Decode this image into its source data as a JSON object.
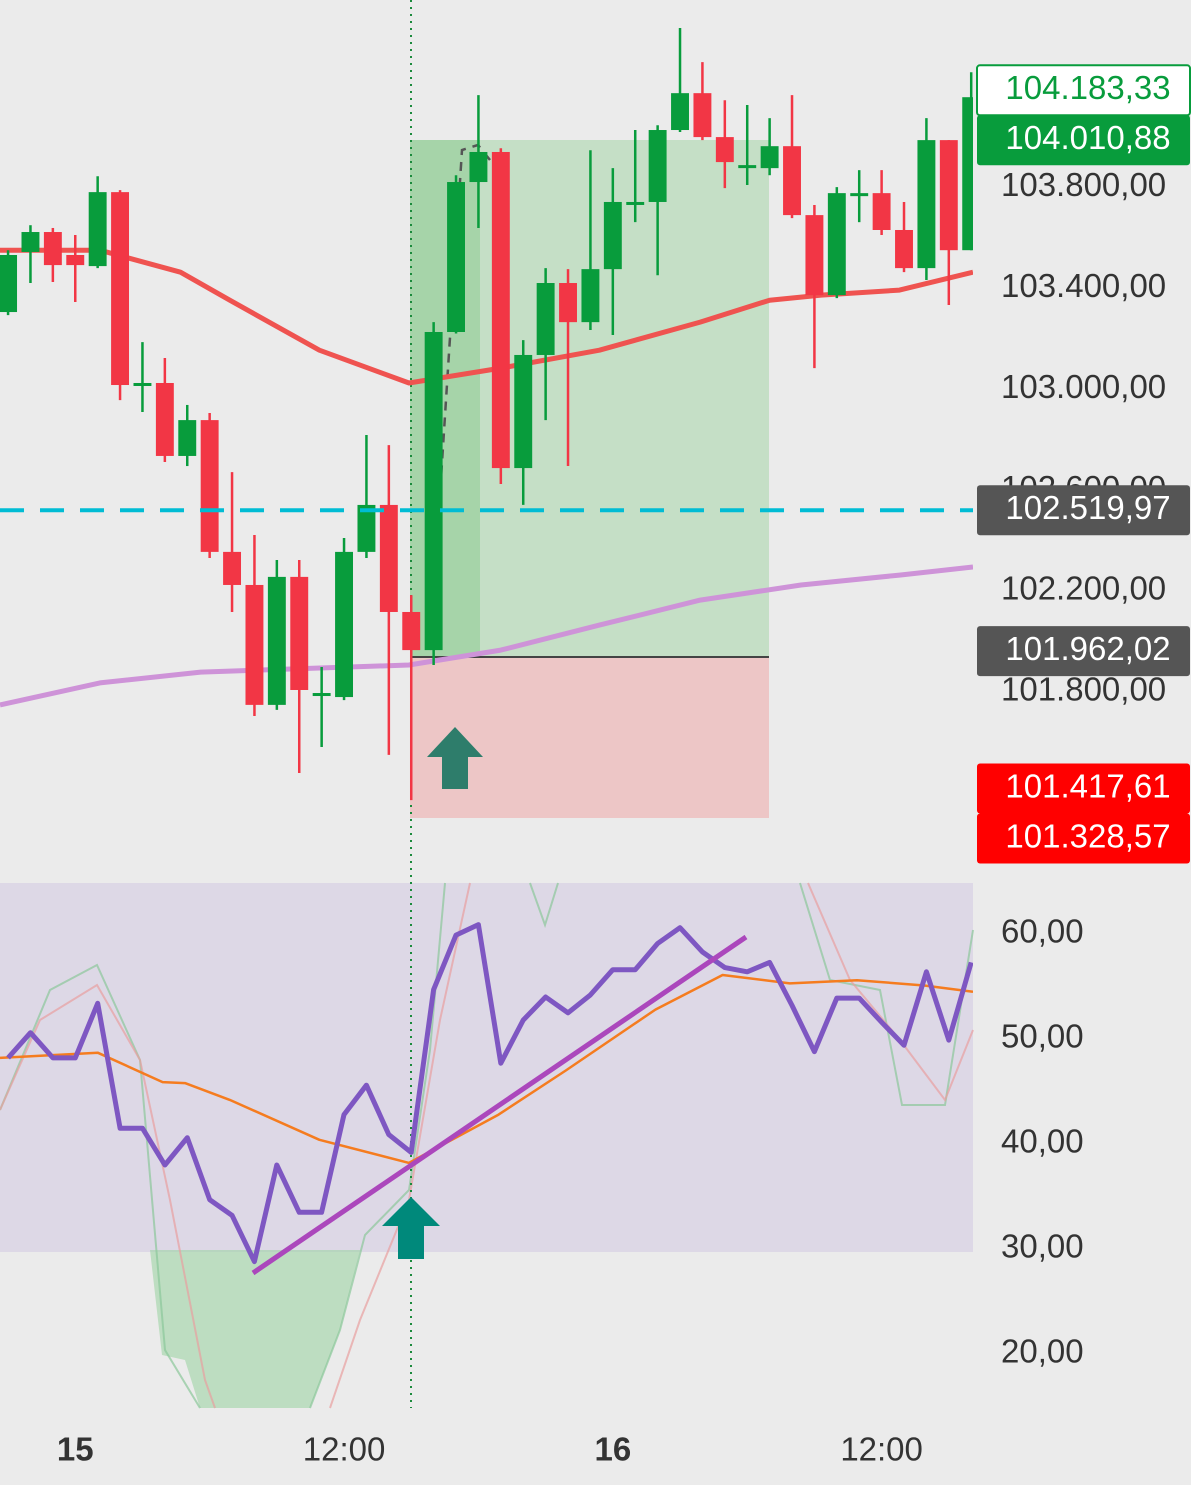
{
  "chart_data": [
    {
      "type": "candlestick",
      "x": [
        0,
        1,
        2,
        3,
        4,
        5,
        6,
        7,
        8,
        9,
        10,
        11,
        12,
        13,
        14,
        15,
        16,
        17,
        18,
        19,
        20,
        21,
        22,
        23,
        24,
        25,
        26,
        27,
        28,
        29,
        30,
        31,
        32,
        33,
        34,
        35,
        36,
        37,
        38,
        39,
        40,
        41,
        42,
        43
      ],
      "open": [
        103305,
        103543,
        103622,
        103531,
        103487,
        103780,
        103024,
        103024,
        102735,
        102877,
        102355,
        102224,
        101749,
        102256,
        101796,
        101780,
        102355,
        102541,
        102117,
        101966,
        103226,
        103820,
        103939,
        102687,
        103135,
        103420,
        103265,
        103475,
        103741,
        103741,
        104026,
        104172,
        103998,
        103887,
        103875,
        103962,
        103689,
        103372,
        103776,
        103776,
        103630,
        103479,
        103986,
        103550
      ],
      "high": [
        103550,
        103649,
        103638,
        103610,
        103843,
        103788,
        103186,
        103123,
        102937,
        102905,
        102671,
        102422,
        102323,
        102323,
        101899,
        102410,
        102818,
        102778,
        102184,
        103265,
        103847,
        104164,
        103954,
        103194,
        103479,
        103475,
        103946,
        103875,
        104026,
        104045,
        104430,
        104295,
        104144,
        104125,
        104073,
        104164,
        103729,
        103800,
        103867,
        103867,
        103741,
        104073,
        103986,
        104255
      ],
      "low": [
        103293,
        103420,
        103424,
        103345,
        103479,
        102956,
        102909,
        102711,
        102695,
        102331,
        102117,
        101705,
        101729,
        101479,
        101582,
        101768,
        102331,
        101551,
        101372,
        101907,
        103220,
        103638,
        102624,
        102541,
        102877,
        102695,
        103234,
        103214,
        103661,
        103451,
        104018,
        103986,
        103796,
        103808,
        103847,
        103677,
        103083,
        103360,
        103661,
        103610,
        103463,
        103432,
        103333,
        103550
      ],
      "close": [
        103531,
        103622,
        103491,
        103491,
        103780,
        103016,
        103024,
        102735,
        102877,
        102355,
        102224,
        101749,
        102256,
        101808,
        101796,
        102355,
        102541,
        102117,
        101966,
        103226,
        103820,
        103939,
        102687,
        103135,
        103420,
        103265,
        103475,
        103741,
        103741,
        104026,
        104172,
        103998,
        103899,
        103887,
        103962,
        103689,
        103372,
        103776,
        103776,
        103630,
        103479,
        103986,
        103550,
        104156
      ],
      "up_color": "#089c3c",
      "down_color": "#f23645",
      "xlim": [
        -0.36,
        43.08
      ],
      "ylim": [
        101095,
        104541
      ],
      "yticks": [
        {
          "value": 101800,
          "label": "101.800,00"
        },
        {
          "value": 102200,
          "label": "102.200,00"
        },
        {
          "value": 102600,
          "label": "102.600,00"
        },
        {
          "value": 103000,
          "label": "103.000,00"
        },
        {
          "value": 103400,
          "label": "103.400,00"
        },
        {
          "value": 103800,
          "label": "103.800,00"
        }
      ],
      "xticks": [
        {
          "value": 3,
          "label": "15",
          "bold": true
        },
        {
          "value": 15,
          "label": "12:00"
        },
        {
          "value": 27,
          "label": "16",
          "bold": true
        },
        {
          "value": 39,
          "label": "12:00"
        }
      ],
      "moving_averages": [
        {
          "color": "#ef5350",
          "x": [
            -0.36,
            4.1,
            7.7,
            9.9,
            13.9,
            17.9,
            22.0,
            26.4,
            30.9,
            34.0,
            36.3,
            39.8,
            43.08
          ],
          "values": [
            103550,
            103550,
            103463,
            103352,
            103154,
            103024,
            103083,
            103154,
            103265,
            103352,
            103372,
            103392,
            103463
          ]
        },
        {
          "color": "#ce93d8",
          "x": [
            -0.36,
            4.1,
            8.6,
            17.9,
            22.0,
            26.4,
            30.9,
            35.4,
            39.8,
            43.08
          ],
          "values": [
            101749,
            101836,
            101879,
            101907,
            101966,
            102065,
            102164,
            102224,
            102263,
            102295
          ]
        }
      ],
      "price_tags": [
        {
          "value": 104183.33,
          "label": "104.183,33",
          "bg": "#ffffff",
          "fg": "#089c3c",
          "border": "#089c3c"
        },
        {
          "value": 104010.88,
          "label": "104.010,88",
          "bg": "#089c3c",
          "fg": "#ffffff"
        },
        {
          "value": 102519.97,
          "label": "102.519,97",
          "bg": "#555555",
          "fg": "#ffffff",
          "line": "#00bcd4"
        },
        {
          "value": 101962.02,
          "label": "101.962,02",
          "bg": "#555555",
          "fg": "#ffffff"
        },
        {
          "value": 101417.61,
          "label": "101.417,61",
          "bg": "#ff0000",
          "fg": "#ffffff"
        },
        {
          "value": 101328.57,
          "label": "101.328,57",
          "bg": "#ff0000",
          "fg": "#ffffff"
        }
      ]
    },
    {
      "type": "line",
      "ylim": [
        14.86,
        64.86
      ],
      "yticks": [
        {
          "value": 20,
          "label": "20,00"
        },
        {
          "value": 30,
          "label": "30,00"
        },
        {
          "value": 40,
          "label": "40,00"
        },
        {
          "value": 50,
          "label": "50,00"
        },
        {
          "value": 60,
          "label": "60,00"
        }
      ],
      "series": [
        {
          "color": "#7e57c2",
          "values": [
            48.2,
            50.6,
            48.2,
            48.2,
            53.4,
            41.5,
            41.5,
            38.0,
            40.6,
            34.7,
            33.2,
            28.8,
            38.0,
            33.5,
            33.5,
            42.8,
            45.6,
            40.9,
            39.2,
            54.7,
            59.9,
            60.9,
            47.7,
            51.8,
            54.0,
            52.5,
            54.2,
            56.6,
            56.6,
            59.1,
            60.6,
            58.3,
            56.8,
            56.4,
            57.3,
            53.2,
            48.8,
            53.9,
            53.9,
            51.6,
            49.4,
            56.4,
            49.9,
            57.3
          ]
        },
        {
          "color": "#f57c1f",
          "x": [
            -0.36,
            4.0,
            6.9,
            7.9,
            9.9,
            13.9,
            17.9,
            21.9,
            24.9,
            28.9,
            31.9,
            34.9,
            37.9,
            40.9,
            43.08
          ],
          "values": [
            48.2,
            48.7,
            45.9,
            45.8,
            44.2,
            40.4,
            38.2,
            42.8,
            47.0,
            52.8,
            56.1,
            55.3,
            55.6,
            55.1,
            54.5
          ]
        }
      ]
    }
  ]
}
